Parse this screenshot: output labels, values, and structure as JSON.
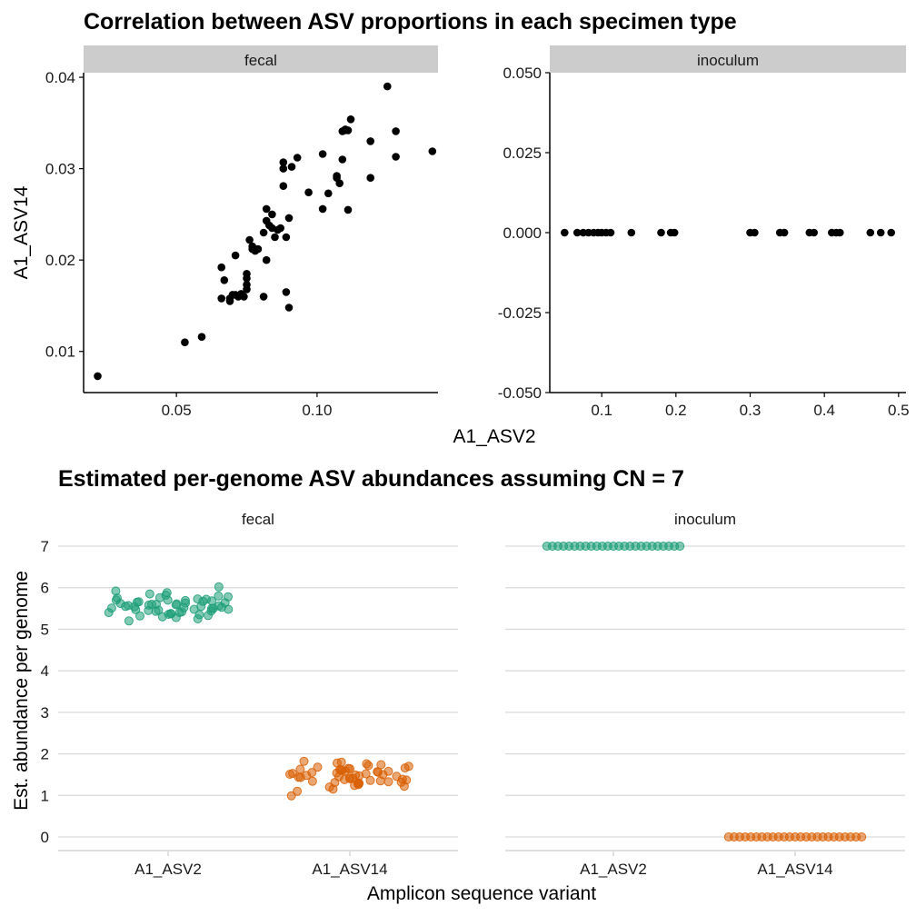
{
  "chart_data": [
    {
      "type": "scatter",
      "title": "Correlation between ASV proportions in each specimen type",
      "xlabel": "A1_ASV2",
      "ylabel": "A1_ASV14",
      "facets": [
        {
          "label": "fecal",
          "xlim": [
            0.017,
            0.143
          ],
          "ylim": [
            0.0055,
            0.0405
          ],
          "xticks": [
            0.05,
            0.1
          ],
          "xtick_labels": [
            "0.05",
            "0.10"
          ],
          "yticks": [
            0.01,
            0.02,
            0.03,
            0.04
          ],
          "ytick_labels": [
            "0.01",
            "0.02",
            "0.03",
            "0.04"
          ],
          "x": [
            0.022,
            0.053,
            0.059,
            0.066,
            0.066,
            0.067,
            0.069,
            0.069,
            0.07,
            0.071,
            0.071,
            0.072,
            0.073,
            0.074,
            0.075,
            0.075,
            0.075,
            0.075,
            0.076,
            0.077,
            0.077,
            0.078,
            0.079,
            0.081,
            0.081,
            0.082,
            0.082,
            0.082,
            0.083,
            0.084,
            0.084,
            0.085,
            0.086,
            0.087,
            0.088,
            0.088,
            0.088,
            0.089,
            0.089,
            0.09,
            0.09,
            0.091,
            0.093,
            0.097,
            0.102,
            0.102,
            0.104,
            0.107,
            0.107,
            0.108,
            0.109,
            0.109,
            0.11,
            0.11,
            0.111,
            0.111,
            0.112,
            0.119,
            0.119,
            0.125,
            0.128,
            0.128,
            0.141
          ],
          "y": [
            0.0073,
            0.011,
            0.0116,
            0.0158,
            0.0192,
            0.0178,
            0.0155,
            0.0158,
            0.0162,
            0.0162,
            0.0205,
            0.016,
            0.0163,
            0.016,
            0.018,
            0.0185,
            0.0173,
            0.0168,
            0.0222,
            0.0215,
            0.0212,
            0.021,
            0.0212,
            0.016,
            0.023,
            0.0243,
            0.0256,
            0.02,
            0.0238,
            0.0235,
            0.025,
            0.0225,
            0.0233,
            0.0235,
            0.0307,
            0.03,
            0.0281,
            0.0165,
            0.0225,
            0.0246,
            0.0148,
            0.0302,
            0.0312,
            0.0274,
            0.0316,
            0.0256,
            0.0273,
            0.0292,
            0.029,
            0.0284,
            0.0341,
            0.031,
            0.0343,
            0.0342,
            0.0342,
            0.0255,
            0.0354,
            0.033,
            0.029,
            0.039,
            0.0313,
            0.0341,
            0.0319
          ]
        },
        {
          "label": "inoculum",
          "xlim": [
            0.03,
            0.51
          ],
          "ylim": [
            -0.05,
            0.05
          ],
          "xticks": [
            0.1,
            0.2,
            0.3,
            0.4,
            0.5
          ],
          "xtick_labels": [
            "0.1",
            "0.2",
            "0.3",
            "0.4",
            "0.5"
          ],
          "yticks": [
            -0.05,
            -0.025,
            0,
            0.025,
            0.05
          ],
          "ytick_labels": [
            "-0.050",
            "-0.025",
            "0.000",
            "0.025",
            "0.050"
          ],
          "x": [
            0.05,
            0.067,
            0.075,
            0.082,
            0.089,
            0.095,
            0.1,
            0.106,
            0.112,
            0.14,
            0.18,
            0.193,
            0.198,
            0.3,
            0.306,
            0.34,
            0.346,
            0.38,
            0.386,
            0.41,
            0.416,
            0.421,
            0.462,
            0.476,
            0.49
          ],
          "y": [
            0,
            0,
            0,
            0,
            0,
            0,
            0,
            0,
            0,
            0,
            0,
            0,
            0,
            0,
            0,
            0,
            0,
            0,
            0,
            0,
            0,
            0,
            0,
            0,
            0
          ]
        }
      ]
    },
    {
      "type": "scatter",
      "title": "Estimated per-genome ASV abundances assuming CN = 7",
      "xlabel": "Amplicon sequence variant",
      "ylabel": "Est. abundance per genome",
      "categories": [
        "A1_ASV2",
        "A1_ASV14"
      ],
      "ylim": [
        -0.35,
        7.35
      ],
      "yticks": [
        0,
        1,
        2,
        3,
        4,
        5,
        6,
        7
      ],
      "ytick_labels": [
        "0",
        "1",
        "2",
        "3",
        "4",
        "5",
        "6",
        "7"
      ],
      "colors": {
        "A1_ASV2": "#1b9e77",
        "A1_ASV14": "#d95f02"
      },
      "facets": [
        {
          "label": "fecal",
          "series": [
            {
              "category": "A1_ASV2",
              "values": [
                5.2,
                5.25,
                5.28,
                5.3,
                5.32,
                5.33,
                5.35,
                5.36,
                5.37,
                5.38,
                5.4,
                5.4,
                5.42,
                5.43,
                5.44,
                5.45,
                5.46,
                5.47,
                5.48,
                5.48,
                5.5,
                5.5,
                5.51,
                5.52,
                5.53,
                5.54,
                5.55,
                5.55,
                5.56,
                5.57,
                5.58,
                5.59,
                5.6,
                5.6,
                5.61,
                5.62,
                5.63,
                5.64,
                5.65,
                5.66,
                5.67,
                5.68,
                5.69,
                5.7,
                5.7,
                5.72,
                5.73,
                5.75,
                5.76,
                5.78,
                5.8,
                5.82,
                5.85,
                5.88,
                5.92,
                6.02
              ]
            },
            {
              "category": "A1_ASV14",
              "values": [
                0.99,
                1.1,
                1.15,
                1.2,
                1.22,
                1.24,
                1.26,
                1.28,
                1.29,
                1.3,
                1.31,
                1.32,
                1.33,
                1.34,
                1.35,
                1.36,
                1.37,
                1.38,
                1.39,
                1.4,
                1.41,
                1.42,
                1.43,
                1.44,
                1.45,
                1.46,
                1.47,
                1.48,
                1.49,
                1.5,
                1.51,
                1.52,
                1.53,
                1.54,
                1.55,
                1.56,
                1.57,
                1.58,
                1.59,
                1.6,
                1.61,
                1.62,
                1.63,
                1.64,
                1.65,
                1.66,
                1.68,
                1.7,
                1.72,
                1.74,
                1.76,
                1.78,
                1.8,
                1.82
              ]
            }
          ]
        },
        {
          "label": "inoculum",
          "series": [
            {
              "category": "A1_ASV2",
              "values": [
                7,
                7,
                7,
                7,
                7,
                7,
                7,
                7,
                7,
                7,
                7,
                7,
                7,
                7,
                7,
                7,
                7,
                7,
                7,
                7,
                7,
                7,
                7,
                7,
                7
              ]
            },
            {
              "category": "A1_ASV14",
              "values": [
                0,
                0,
                0,
                0,
                0,
                0,
                0,
                0,
                0,
                0,
                0,
                0,
                0,
                0,
                0,
                0,
                0,
                0,
                0,
                0,
                0,
                0,
                0,
                0,
                0
              ]
            }
          ]
        }
      ]
    }
  ]
}
